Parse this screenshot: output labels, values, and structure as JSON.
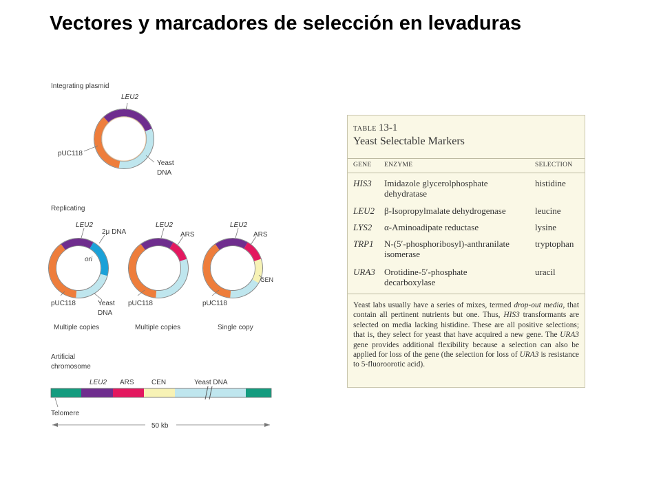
{
  "slide": {
    "title": "Vectores y marcadores de selección en levaduras"
  },
  "figure": {
    "integrating": {
      "heading": "Integrating plasmid",
      "labels": {
        "leu2": "LEU2",
        "puc": "pUC118",
        "yeast_1": "Yeast",
        "yeast_2": "DNA"
      }
    },
    "replicating": {
      "heading": "Replicating",
      "p1": {
        "leu2": "LEU2",
        "dna2u": "2μ DNA",
        "ori": "ori",
        "puc": "pUC118",
        "yeast_1": "Yeast",
        "yeast_2": "DNA",
        "copies": "Multiple copies"
      },
      "p2": {
        "leu2": "LEU2",
        "ars": "ARS",
        "puc": "pUC118",
        "copies": "Multiple copies"
      },
      "p3": {
        "leu2": "LEU2",
        "ars": "ARS",
        "cen": "CEN",
        "puc": "pUC118",
        "copies": "Single copy"
      }
    },
    "artificial": {
      "heading_1": "Artificial",
      "heading_2": "chromosome",
      "labels": {
        "leu2": "LEU2",
        "ars": "ARS",
        "cen": "CEN",
        "yeast": "Yeast DNA",
        "telomere": "Telomere",
        "scale": "50 kb"
      }
    },
    "colors": {
      "leu2": "#6f2d8e",
      "puc": "#ee7d3b",
      "yeast": "#bfe6ee",
      "twomicron": "#1ba1d8",
      "ars": "#e3185f",
      "cen": "#f7f2b5",
      "telomere": "#149c7f"
    }
  },
  "table": {
    "label": "TABLE",
    "number": "13-1",
    "name": "Yeast Selectable Markers",
    "columns": {
      "gene": "GENE",
      "enzyme": "ENZYME",
      "selection": "SELECTION"
    },
    "rows": [
      {
        "gene": "HIS3",
        "enzyme_1": "Imidazole glycerolphosphate",
        "enzyme_2": "dehydratase",
        "selection": "histidine"
      },
      {
        "gene": "LEU2",
        "enzyme_1": "β-Isopropylmalate dehydrogenase",
        "enzyme_2": "",
        "selection": "leucine"
      },
      {
        "gene": "LYS2",
        "enzyme_1": "α-Aminoadipate reductase",
        "enzyme_2": "",
        "selection": "lysine"
      },
      {
        "gene": "TRP1",
        "enzyme_1": "N-(5′-phosphoribosyl)-anthranilate",
        "enzyme_2": "isomerase",
        "selection": "tryptophan"
      },
      {
        "gene": "URA3",
        "enzyme_1": "Orotidine-5′-phosphate",
        "enzyme_2": "decarboxylase",
        "selection": "uracil"
      }
    ],
    "note": {
      "t1": "Yeast labs usually have a series of mixes, termed ",
      "t2": "drop-out media,",
      "t3": " that contain all pertinent nutrients but one. Thus, ",
      "t4": "HIS3",
      "t5": " transformants are selected on media lacking histidine. These are all positive selections; that is, they select for yeast that have acquired a new gene. The ",
      "t6": "URA3",
      "t7": " gene provides additional flexibility because a selection can also be applied for loss of the gene (the selection for loss of ",
      "t8": "URA3",
      "t9": " is resistance to 5-fluoroorotic acid)."
    }
  }
}
